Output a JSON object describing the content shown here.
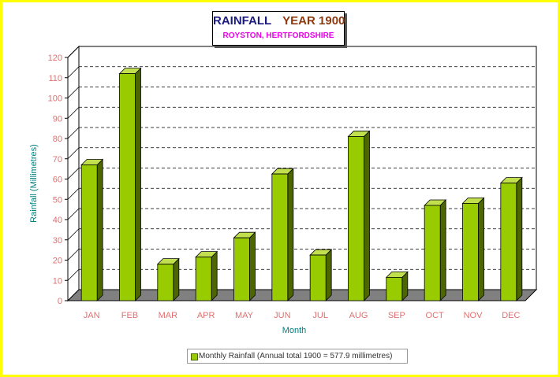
{
  "title": "RAINFALL",
  "title_year": "YEAR 1900",
  "subtitle": "ROYSTON, HERTFORDSHIRE",
  "colors": {
    "background": "#ffff00",
    "bar_front": "#99cc00",
    "bar_side": "#4d6600",
    "bar_top": "#c2e04d",
    "floor": "#808080",
    "axis_text": "#e07070",
    "axis_title": "#008080"
  },
  "chart_data": {
    "type": "bar",
    "title": "RAINFALL YEAR 1900",
    "subtitle": "ROYSTON, HERTFORDSHIRE",
    "xlabel": "Month",
    "ylabel": "Rainfall (Millimetres)",
    "categories": [
      "JAN",
      "FEB",
      "MAR",
      "APR",
      "MAY",
      "JUN",
      "JUL",
      "AUG",
      "SEP",
      "OCT",
      "NOV",
      "DEC"
    ],
    "series": [
      {
        "name": "Monthly Rainfall (Annual total 1900 = 577.9 millimetres)",
        "values": [
          67,
          112,
          18,
          21.5,
          31,
          62.5,
          22.5,
          81,
          11.5,
          47,
          48,
          58
        ]
      }
    ],
    "ylim": [
      0,
      120
    ],
    "yticks": [
      0,
      10,
      20,
      30,
      40,
      50,
      60,
      70,
      80,
      90,
      100,
      110,
      120
    ],
    "grid": true,
    "legend_position": "bottom"
  }
}
